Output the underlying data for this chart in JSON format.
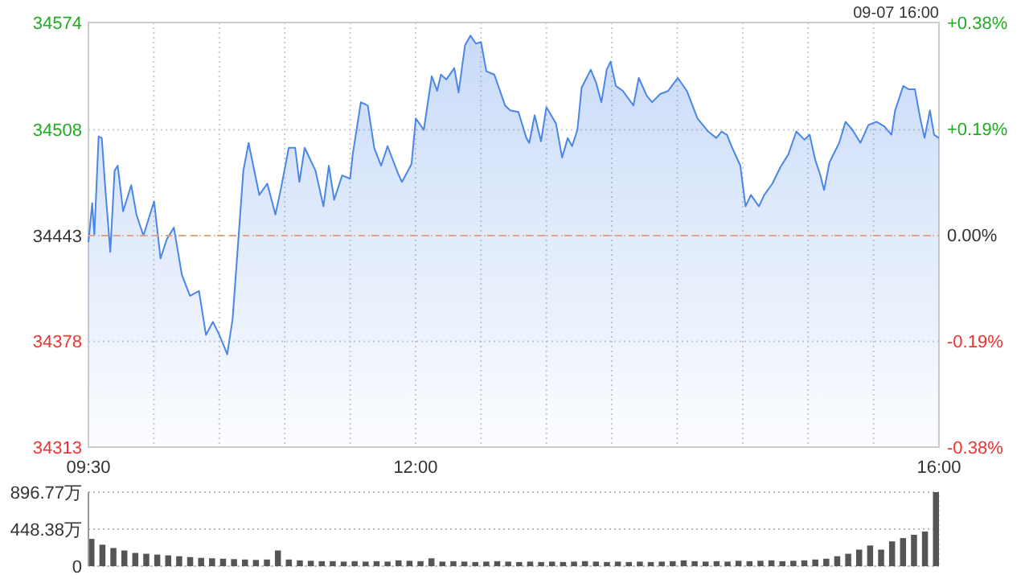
{
  "chart_data": [
    {
      "type": "area",
      "color": "#4a86e8",
      "annotations": [
        "09-07 16:00"
      ],
      "x": [
        9.5,
        9.529,
        9.545,
        9.578,
        9.602,
        9.631,
        9.667,
        9.7,
        9.724,
        9.765,
        9.827,
        9.867,
        9.92,
        10.002,
        10.051,
        10.1,
        10.153,
        10.214,
        10.276,
        10.345,
        10.398,
        10.451,
        10.5,
        10.561,
        10.602,
        10.684,
        10.724,
        10.806,
        10.867,
        10.929,
        10.969,
        11.031,
        11.08,
        11.112,
        11.153,
        11.235,
        11.296,
        11.337,
        11.378,
        11.439,
        11.5,
        11.52,
        11.582,
        11.635,
        11.684,
        11.737,
        11.786,
        11.867,
        11.896,
        11.969,
        12.002,
        12.063,
        12.124,
        12.165,
        12.194,
        12.235,
        12.296,
        12.329,
        12.378,
        12.42,
        12.461,
        12.5,
        12.541,
        12.602,
        12.684,
        12.724,
        12.786,
        12.847,
        12.869,
        12.91,
        12.959,
        13.0,
        13.073,
        13.12,
        13.163,
        13.196,
        13.237,
        13.269,
        13.339,
        13.38,
        13.42,
        13.461,
        13.49,
        13.531,
        13.584,
        13.665,
        13.706,
        13.767,
        13.808,
        13.869,
        13.931,
        14.004,
        14.073,
        14.155,
        14.237,
        14.298,
        14.339,
        14.38,
        14.42,
        14.482,
        14.522,
        14.563,
        14.624,
        14.665,
        14.727,
        14.788,
        14.849,
        14.91,
        14.971,
        15.012,
        15.053,
        15.094,
        15.122,
        15.163,
        15.237,
        15.286,
        15.339,
        15.4,
        15.461,
        15.522,
        15.584,
        15.637,
        15.665,
        15.727,
        15.767,
        15.816,
        15.857,
        15.89,
        15.931,
        15.963,
        16.0
      ],
      "values": [
        34439,
        34463,
        34443,
        34504,
        34503,
        34470,
        34433,
        34483,
        34486,
        34458,
        34474,
        34456,
        34443,
        34464,
        34429,
        34441,
        34448,
        34419,
        34406,
        34409,
        34382,
        34390,
        34382,
        34370,
        34392,
        34483,
        34500,
        34468,
        34475,
        34456,
        34471,
        34497,
        34497,
        34476,
        34497,
        34483,
        34461,
        34486,
        34465,
        34480,
        34478,
        34493,
        34525,
        34523,
        34497,
        34486,
        34498,
        34481,
        34476,
        34487,
        34515,
        34508,
        34541,
        34532,
        34542,
        34539,
        34546,
        34531,
        34560,
        34566,
        34561,
        34562,
        34544,
        34542,
        34523,
        34520,
        34519,
        34503,
        34500,
        34517,
        34501,
        34522,
        34512,
        34491,
        34503,
        34498,
        34508,
        34534,
        34545,
        34537,
        34525,
        34545,
        34550,
        34535,
        34532,
        34523,
        34540,
        34529,
        34525,
        34530,
        34532,
        34540,
        34532,
        34515,
        34507,
        34503,
        34507,
        34505,
        34497,
        34486,
        34461,
        34468,
        34461,
        34468,
        34475,
        34485,
        34493,
        34507,
        34502,
        34505,
        34490,
        34480,
        34471,
        34488,
        34500,
        34513,
        34508,
        34500,
        34511,
        34513,
        34510,
        34505,
        34520,
        34535,
        34533,
        34533,
        34515,
        34503,
        34520,
        34505,
        34503
      ],
      "xlim": [
        9.5,
        16
      ],
      "xticks": [
        {
          "value": 9.5,
          "label": "09:30"
        },
        {
          "value": 10,
          "label": null
        },
        {
          "value": 10.5,
          "label": null
        },
        {
          "value": 11,
          "label": null
        },
        {
          "value": 11.5,
          "label": null
        },
        {
          "value": 12,
          "label": "12:00"
        },
        {
          "value": 12.5,
          "label": null
        },
        {
          "value": 13,
          "label": null
        },
        {
          "value": 13.5,
          "label": null
        },
        {
          "value": 14,
          "label": null
        },
        {
          "value": 14.5,
          "label": null
        },
        {
          "value": 15,
          "label": null
        },
        {
          "value": 15.5,
          "label": null
        },
        {
          "value": 16,
          "label": "16:00"
        }
      ],
      "ylim": [
        34313,
        34574
      ],
      "yticks": [
        34313,
        34378,
        34443,
        34508,
        34574
      ],
      "y2lim": [
        -0.38,
        0.38
      ],
      "y2ticks": [
        {
          "value": -0.38,
          "label": "-0.38%"
        },
        {
          "value": -0.19,
          "label": "-0.19%"
        },
        {
          "value": 0,
          "label": "0.00%"
        },
        {
          "value": 0.19,
          "label": "+0.19%"
        },
        {
          "value": 0.38,
          "label": "+0.38%"
        }
      ],
      "ref_lines": [
        {
          "axis": "y",
          "value": 34443,
          "color": "#e8a080",
          "line_style": "dashed"
        }
      ],
      "grid": true
    },
    {
      "type": "bar",
      "color": "#555555",
      "tick_labels": "y",
      "grid": "y",
      "categories": [
        null,
        null,
        null,
        null,
        null,
        null,
        null,
        null,
        null,
        null,
        null,
        null,
        null,
        null,
        null,
        null,
        null,
        null,
        null,
        null,
        null,
        null,
        null,
        null,
        null,
        null,
        null,
        null,
        null,
        null,
        null,
        null,
        null,
        null,
        null,
        null,
        null,
        null,
        null,
        null,
        null,
        null,
        null,
        null,
        null,
        null,
        null,
        null,
        null,
        null,
        null,
        null,
        null,
        null,
        null,
        null,
        null,
        null,
        null,
        null,
        null,
        null,
        null,
        null,
        null,
        null,
        null,
        null,
        null,
        null,
        null,
        null,
        null,
        null,
        null,
        null,
        null,
        null
      ],
      "values": [
        330,
        260,
        220,
        190,
        160,
        150,
        140,
        130,
        120,
        110,
        100,
        95,
        90,
        85,
        80,
        75,
        80,
        190,
        80,
        70,
        65,
        60,
        60,
        55,
        60,
        55,
        60,
        55,
        70,
        65,
        60,
        95,
        55,
        60,
        55,
        50,
        55,
        60,
        55,
        50,
        55,
        50,
        55,
        50,
        55,
        60,
        55,
        50,
        55,
        50,
        55,
        50,
        55,
        60,
        70,
        60,
        55,
        60,
        55,
        65,
        60,
        65,
        70,
        60,
        65,
        70,
        80,
        90,
        120,
        150,
        200,
        250,
        200,
        300,
        340,
        380,
        420,
        896.77
      ],
      "ylim": [
        0,
        896.77
      ],
      "yticks": [
        0,
        {
          "value": 448.38,
          "label": "448.38万"
        },
        {
          "value": 896.77,
          "label": "896.77万"
        }
      ]
    }
  ]
}
